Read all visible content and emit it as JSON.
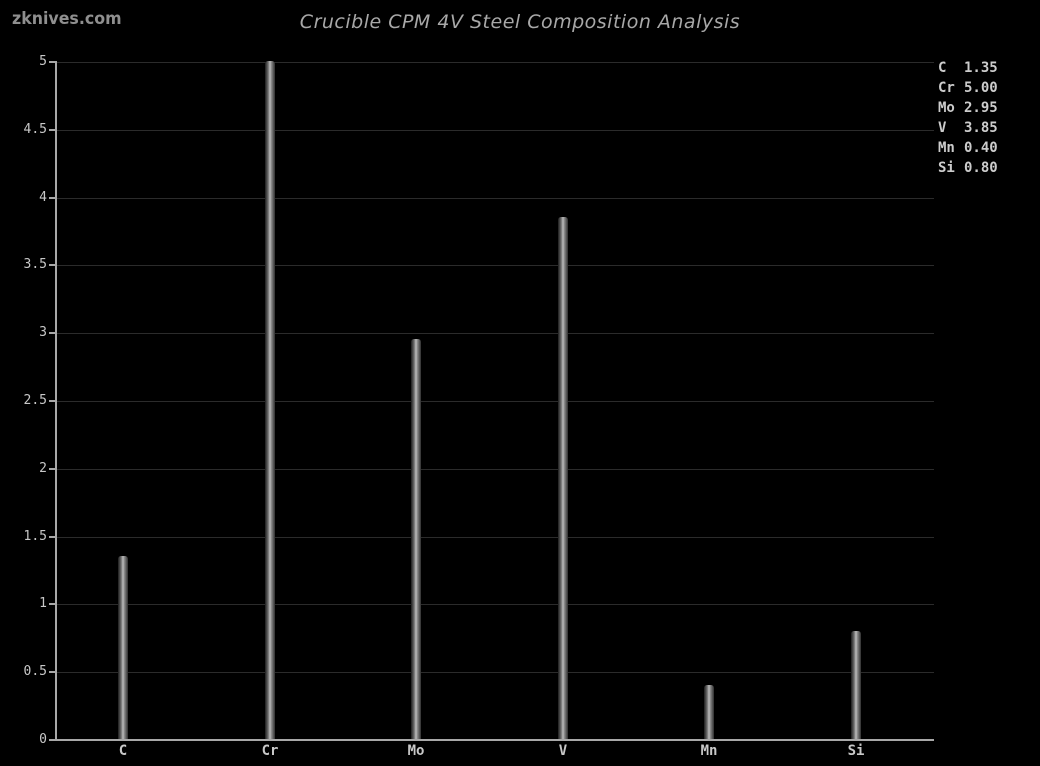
{
  "watermark": "zknives.com",
  "chart_data": {
    "type": "bar",
    "title": "Crucible CPM 4V Steel Composition Analysis",
    "categories": [
      "C",
      "Cr",
      "Mo",
      "V",
      "Mn",
      "Si"
    ],
    "values": [
      1.35,
      5.0,
      2.95,
      3.85,
      0.4,
      0.8
    ],
    "value_labels": [
      "1.35",
      "5.00",
      "2.95",
      "3.85",
      "0.40",
      "0.80"
    ],
    "xlabel": "",
    "ylabel": "",
    "ylim": [
      0,
      5
    ],
    "ytick_step": 0.5,
    "ytick_labels": [
      "0",
      "0.5",
      "1",
      "1.5",
      "2",
      "2.5",
      "3",
      "3.5",
      "4",
      "4.5",
      "5"
    ],
    "grid": true,
    "legend_position": "top-right",
    "legend": [
      {
        "symbol": "C",
        "value": "1.35"
      },
      {
        "symbol": "Cr",
        "value": "5.00"
      },
      {
        "symbol": "Mo",
        "value": "2.95"
      },
      {
        "symbol": "V",
        "value": "3.85"
      },
      {
        "symbol": "Mn",
        "value": "0.40"
      },
      {
        "symbol": "Si",
        "value": "0.80"
      }
    ],
    "colors": {
      "background": "#000000",
      "bar_center": "#bcbcbc",
      "bar_edge": "#1c1c1c",
      "grid": "#2b2b2b",
      "axis": "#a8a8a8",
      "tick_text": "#c8c8c8",
      "legend_text": "#cccccc",
      "title_text": "#a8a8a8",
      "watermark_text": "#8f8f8f"
    }
  }
}
